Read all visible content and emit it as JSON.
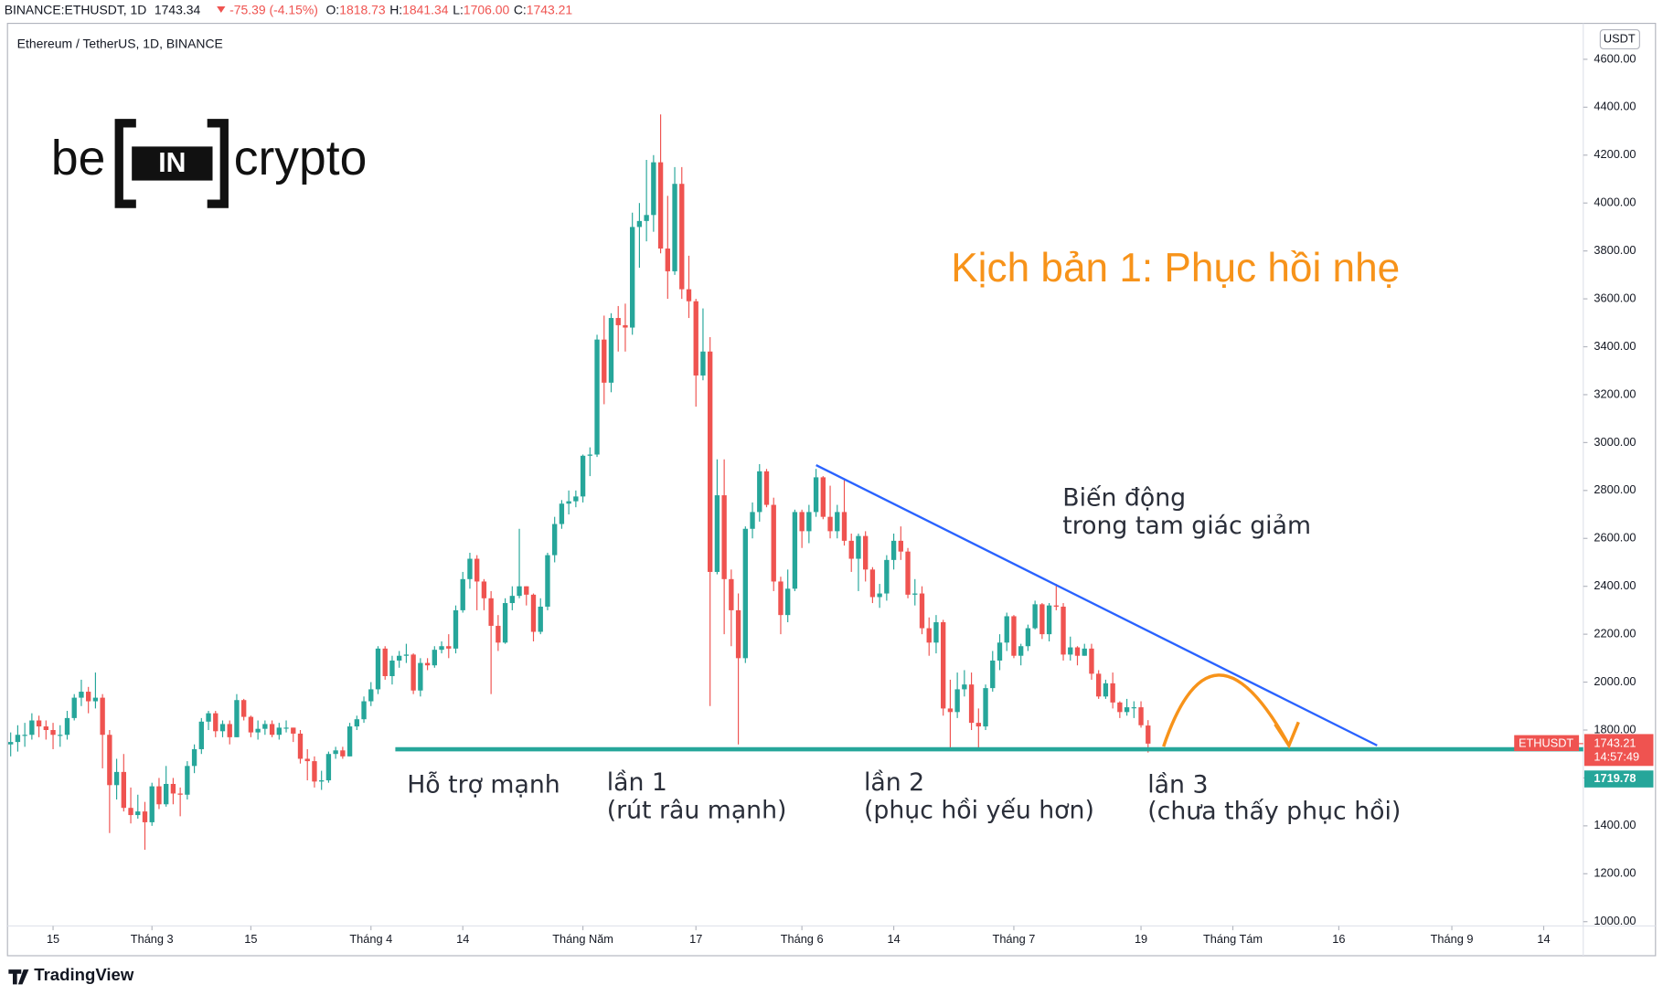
{
  "header": {
    "symbol": "BINANCE:ETHUSDT, 1D",
    "price": "1743.34",
    "change": "-75.39 (-4.15%)",
    "ohlc": [
      {
        "label": "O:",
        "value": "1818.73"
      },
      {
        "label": "H:",
        "value": "1841.34"
      },
      {
        "label": "L:",
        "value": "1706.00"
      },
      {
        "label": "C:",
        "value": "1743.21"
      }
    ]
  },
  "logo": {
    "left": "be",
    "middle": "IN",
    "right": "crypto"
  },
  "annotations": {
    "scenario": "Kịch bản 1: Phục hồi nhẹ",
    "pattern_1": "Biến động",
    "pattern_2": "trong tam giác giảm",
    "support": "Hỗ trợ mạnh",
    "touch_1": "lần 1",
    "touch_1_note": "(rút râu mạnh)",
    "touch_2": "lần 2",
    "touch_2_note": "(phục hồi yếu hơn)",
    "touch_3": "lần 3",
    "touch_3_note": "(chưa thấy phục hồi)"
  },
  "price_labels": {
    "symbol": "ETHUSDT",
    "last": 1743.21,
    "countdown": "14:57:49",
    "support": 1719.78
  },
  "footer": "TradingView",
  "chart_data": {
    "type": "candlestick",
    "title": "Ethereum / TetherUS, 1D, BINANCE",
    "y_unit": "USDT",
    "up_color": "#26a69a",
    "down_color": "#ef5350",
    "grid": false,
    "open": [
      1740,
      1750,
      1780,
      1780,
      1840,
      1815,
      1800,
      1780,
      1780,
      1850,
      1935,
      1960,
      1920,
      1935,
      1780,
      1570,
      1625,
      1475,
      1445,
      1460,
      1415,
      1565,
      1490,
      1575,
      1535,
      1530,
      1650,
      1720,
      1835,
      1870,
      1795,
      1825,
      1770,
      1925,
      1855,
      1790,
      1805,
      1825,
      1780,
      1810,
      1810,
      1785,
      1680,
      1670,
      1585,
      1590,
      1700,
      1715,
      1690,
      1815,
      1845,
      1920,
      1970,
      2140,
      2025,
      2090,
      2110,
      2115,
      1965,
      2080,
      2070,
      2135,
      2150,
      2140,
      2300,
      2430,
      2515,
      2420,
      2350,
      2235,
      2165,
      2330,
      2360,
      2400,
      2365,
      2210,
      2315,
      2530,
      2660,
      2745,
      2755,
      2775,
      2945,
      2950,
      3430,
      3250,
      3520,
      3490,
      3480,
      3900,
      3925,
      3950,
      4170,
      3810,
      3715,
      4080,
      3640,
      3590,
      3280,
      3380,
      2460,
      2780,
      2430,
      2300,
      2100,
      2640,
      2710,
      2880,
      2740,
      2420,
      2280,
      2390,
      2710,
      2630,
      2710,
      2855,
      2690,
      2630,
      2710,
      2590,
      2515,
      2610,
      2470,
      2355,
      2370,
      2510,
      2590,
      2545,
      2365,
      2370,
      2225,
      2165,
      2250,
      1890,
      1875,
      1970,
      1990,
      1830,
      1815,
      1975,
      2090,
      2165,
      2275,
      2110,
      2150,
      2225,
      2325,
      2200,
      2320,
      2315,
      2115,
      2145,
      2110,
      2140,
      2035,
      1940,
      1995,
      1915,
      1875,
      1895,
      1895,
      1818.73
    ],
    "high": [
      1790,
      1820,
      1830,
      1870,
      1860,
      1840,
      1830,
      1820,
      1880,
      1950,
      2010,
      1980,
      2040,
      1950,
      1800,
      1680,
      1700,
      1560,
      1530,
      1500,
      1580,
      1600,
      1650,
      1600,
      1560,
      1670,
      1740,
      1850,
      1880,
      1880,
      1840,
      1840,
      1950,
      1930,
      1860,
      1840,
      1840,
      1840,
      1830,
      1840,
      1810,
      1800,
      1720,
      1690,
      1630,
      1710,
      1730,
      1730,
      1830,
      1860,
      1940,
      2000,
      2150,
      2150,
      2110,
      2130,
      2160,
      2120,
      2100,
      2100,
      2150,
      2170,
      2200,
      2320,
      2460,
      2540,
      2530,
      2430,
      2380,
      2280,
      2350,
      2400,
      2640,
      2400,
      2370,
      2350,
      2540,
      2690,
      2760,
      2800,
      2800,
      2950,
      2980,
      3450,
      3530,
      3540,
      3570,
      3580,
      3960,
      4000,
      4180,
      4200,
      4370,
      4030,
      4150,
      4150,
      3780,
      3600,
      3560,
      3440,
      2930,
      2930,
      2470,
      2370,
      2650,
      2750,
      2910,
      2890,
      2770,
      2440,
      2470,
      2720,
      2720,
      2740,
      2890,
      2860,
      2820,
      2740,
      2850,
      2620,
      2620,
      2630,
      2480,
      2410,
      2530,
      2620,
      2650,
      2560,
      2430,
      2400,
      2270,
      2280,
      2260,
      2010,
      2040,
      2050,
      2040,
      1890,
      1990,
      2130,
      2200,
      2290,
      2280,
      2160,
      2240,
      2340,
      2330,
      2330,
      2410,
      2330,
      2190,
      2150,
      2160,
      2160,
      2050,
      2010,
      2040,
      1920,
      1930,
      1920,
      1920,
      1841.34
    ],
    "low": [
      1690,
      1710,
      1730,
      1760,
      1770,
      1760,
      1720,
      1730,
      1760,
      1840,
      1900,
      1870,
      1890,
      1640,
      1370,
      1510,
      1460,
      1410,
      1430,
      1300,
      1400,
      1470,
      1480,
      1490,
      1440,
      1510,
      1620,
      1700,
      1800,
      1770,
      1770,
      1740,
      1770,
      1840,
      1770,
      1760,
      1780,
      1770,
      1760,
      1790,
      1750,
      1660,
      1590,
      1560,
      1550,
      1580,
      1680,
      1680,
      1690,
      1800,
      1830,
      1900,
      1950,
      2010,
      1990,
      2060,
      2080,
      1950,
      1940,
      2050,
      2060,
      2120,
      2100,
      2120,
      2290,
      2390,
      2300,
      2300,
      1950,
      2130,
      2160,
      2300,
      2350,
      2320,
      2170,
      2200,
      2300,
      2500,
      2640,
      2700,
      2730,
      2750,
      2860,
      2940,
      3160,
      3210,
      3380,
      3380,
      3450,
      3730,
      3840,
      3880,
      3790,
      3600,
      3700,
      3600,
      3520,
      3150,
      3260,
      1900,
      2450,
      2200,
      2150,
      1740,
      2080,
      2600,
      2670,
      2730,
      2380,
      2200,
      2250,
      2380,
      2560,
      2580,
      2690,
      2680,
      2600,
      2600,
      2570,
      2460,
      2380,
      2420,
      2330,
      2310,
      2340,
      2470,
      2510,
      2350,
      2320,
      2200,
      2110,
      2120,
      1860,
      1720,
      1850,
      1940,
      1800,
      1720,
      1800,
      1960,
      2050,
      2130,
      2100,
      2070,
      2130,
      2220,
      2180,
      2170,
      2300,
      2090,
      2090,
      2070,
      2110,
      2010,
      1930,
      1930,
      1890,
      1850,
      1860,
      1850,
      1810,
      1706
    ],
    "close": [
      1750,
      1780,
      1780,
      1840,
      1815,
      1800,
      1780,
      1780,
      1850,
      1935,
      1960,
      1920,
      1935,
      1780,
      1570,
      1625,
      1475,
      1445,
      1460,
      1415,
      1565,
      1490,
      1575,
      1535,
      1530,
      1650,
      1720,
      1835,
      1870,
      1795,
      1825,
      1770,
      1925,
      1855,
      1790,
      1805,
      1825,
      1780,
      1810,
      1810,
      1785,
      1680,
      1670,
      1585,
      1590,
      1700,
      1715,
      1690,
      1815,
      1845,
      1920,
      1970,
      2140,
      2025,
      2090,
      2110,
      2115,
      1965,
      2080,
      2070,
      2135,
      2150,
      2140,
      2300,
      2430,
      2515,
      2420,
      2350,
      2235,
      2165,
      2330,
      2360,
      2400,
      2365,
      2210,
      2315,
      2530,
      2660,
      2745,
      2755,
      2775,
      2945,
      2950,
      3430,
      3250,
      3520,
      3490,
      3480,
      3900,
      3925,
      3950,
      4170,
      3810,
      3715,
      4080,
      3640,
      3590,
      3280,
      3380,
      2460,
      2780,
      2430,
      2300,
      2100,
      2640,
      2710,
      2880,
      2740,
      2420,
      2280,
      2390,
      2710,
      2630,
      2710,
      2855,
      2690,
      2630,
      2710,
      2590,
      2515,
      2610,
      2470,
      2355,
      2370,
      2510,
      2590,
      2545,
      2365,
      2370,
      2225,
      2165,
      2250,
      1890,
      1875,
      1970,
      1990,
      1830,
      1815,
      1975,
      2090,
      2165,
      2275,
      2110,
      2150,
      2225,
      2325,
      2200,
      2320,
      2315,
      2115,
      2145,
      2110,
      2140,
      2035,
      1940,
      1995,
      1915,
      1875,
      1895,
      1895,
      1820,
      1743.21
    ],
    "xlim": [
      -0.3,
      222.6
    ],
    "xticks": [
      {
        "value": 6,
        "label": "15"
      },
      {
        "value": 20,
        "label": "Tháng 3"
      },
      {
        "value": 34,
        "label": "15"
      },
      {
        "value": 51,
        "label": "Tháng 4"
      },
      {
        "value": 64,
        "label": "14"
      },
      {
        "value": 81,
        "label": "Tháng Năm"
      },
      {
        "value": 97,
        "label": "17"
      },
      {
        "value": 112,
        "label": "Tháng 6"
      },
      {
        "value": 125,
        "label": "14"
      },
      {
        "value": 142,
        "label": "Tháng 7"
      },
      {
        "value": 160,
        "label": "19"
      },
      {
        "value": 173,
        "label": "Tháng Tám"
      },
      {
        "value": 188,
        "label": "16"
      },
      {
        "value": 204,
        "label": "Tháng 9"
      },
      {
        "value": 217,
        "label": "14"
      }
    ],
    "ylim": [
      982,
      4750
    ],
    "yticks": [
      {
        "value": 1000,
        "label": "1000.00"
      },
      {
        "value": 1200,
        "label": "1200.00"
      },
      {
        "value": 1400,
        "label": "1400.00"
      },
      {
        "value": 1600,
        "label": "1600.00"
      },
      {
        "value": 1800,
        "label": "1800.00"
      },
      {
        "value": 2000,
        "label": "2000.00"
      },
      {
        "value": 2200,
        "label": "2200.00"
      },
      {
        "value": 2400,
        "label": "2400.00"
      },
      {
        "value": 2600,
        "label": "2600.00"
      },
      {
        "value": 2800,
        "label": "2800.00"
      },
      {
        "value": 3000,
        "label": "3000.00"
      },
      {
        "value": 3200,
        "label": "3200.00"
      },
      {
        "value": 3400,
        "label": "3400.00"
      },
      {
        "value": 3600,
        "label": "3600.00"
      },
      {
        "value": 3800,
        "label": "3800.00"
      },
      {
        "value": 4000,
        "label": "4000.00"
      },
      {
        "value": 4200,
        "label": "4200.00"
      },
      {
        "value": 4400,
        "label": "4400.00"
      },
      {
        "value": 4600,
        "label": "4600.00"
      }
    ]
  }
}
